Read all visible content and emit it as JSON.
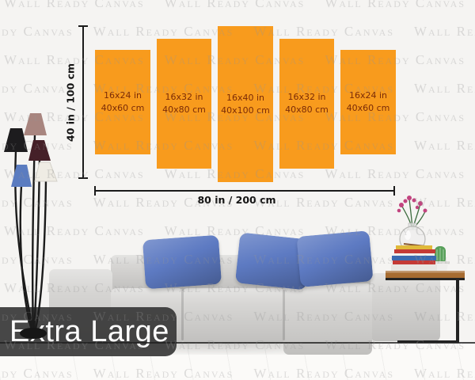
{
  "watermark": {
    "text": "Wall Ready Canvas",
    "color": "rgba(150,150,150,0.30)"
  },
  "badge": {
    "label": "Extra Large",
    "bg": "rgba(52,52,52,0.90)",
    "text_color": "#ffffff"
  },
  "diagram": {
    "vertical_dimension_label": "40 in / 100 cm",
    "horizontal_dimension_label": "80 in / 200 cm",
    "panel_color": "#f89b1d",
    "panel_text_color": "#7a2b07",
    "panels": [
      {
        "size_in": "16x24 in",
        "size_cm": "40x60 cm"
      },
      {
        "size_in": "16x32 in",
        "size_cm": "40x80 cm"
      },
      {
        "size_in": "16x40 in",
        "size_cm": "40x100 cm"
      },
      {
        "size_in": "16x32 in",
        "size_cm": "40x80 cm"
      },
      {
        "size_in": "16x24 in",
        "size_cm": "40x60 cm"
      }
    ]
  },
  "scene": {
    "sofa_color": "#d6d5d3",
    "pillow_color": "#5d7ac2",
    "lamp_shade_colors": [
      "#a8857f",
      "#1d1c1e",
      "#452028",
      "#5b7cc0",
      "#efece4"
    ],
    "table_wood_color": "#a76c31",
    "book_colors": [
      "#e8e6e2",
      "#c43a35",
      "#3a6ab0",
      "#f0efeb",
      "#c43a35",
      "#e0b93a"
    ],
    "cactus_color": "#58a05a",
    "flower_color": "#c2447f"
  }
}
